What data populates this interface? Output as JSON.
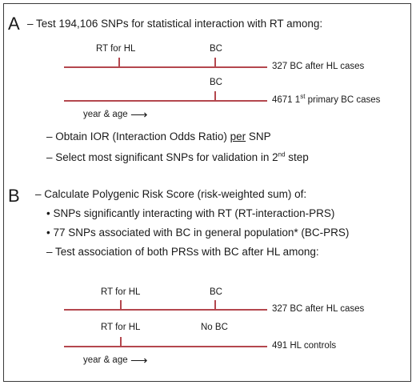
{
  "section_a": {
    "letter": "A",
    "intro": "– Test 194,106 SNPs for statistical interaction with RT among:",
    "timeline1": {
      "marker1": "RT for HL",
      "marker2": "BC",
      "endlabel": "327 BC after HL cases"
    },
    "timeline2": {
      "marker2": "BC",
      "endlabel_pre": "4671 1",
      "endlabel_sup": "st",
      "endlabel_post": " primary BC cases",
      "axis_label": "year & age"
    },
    "item1_pre": "– Obtain IOR (Interaction Odds Ratio) ",
    "item1_u": "per",
    "item1_post": " SNP",
    "item2_pre": "– Select most significant SNPs for validation in 2",
    "item2_sup": "nd",
    "item2_post": " step"
  },
  "section_b": {
    "letter": "B",
    "intro": "– Calculate Polygenic Risk Score (risk-weighted sum) of:",
    "bullet1": "• SNPs significantly interacting with RT (RT-interaction-PRS)",
    "bullet2": "• 77 SNPs associated with BC in general population* (BC-PRS)",
    "test": "– Test association of both PRSs with BC after HL among:",
    "timeline1": {
      "marker1": "RT for HL",
      "marker2": "BC",
      "endlabel": "327 BC after HL cases"
    },
    "timeline2": {
      "marker1": "RT for HL",
      "marker2": "No BC",
      "endlabel": "491 HL controls",
      "axis_label": "year & age"
    }
  },
  "colors": {
    "timeline": "#b4474e",
    "border": "#3a3a3a"
  }
}
